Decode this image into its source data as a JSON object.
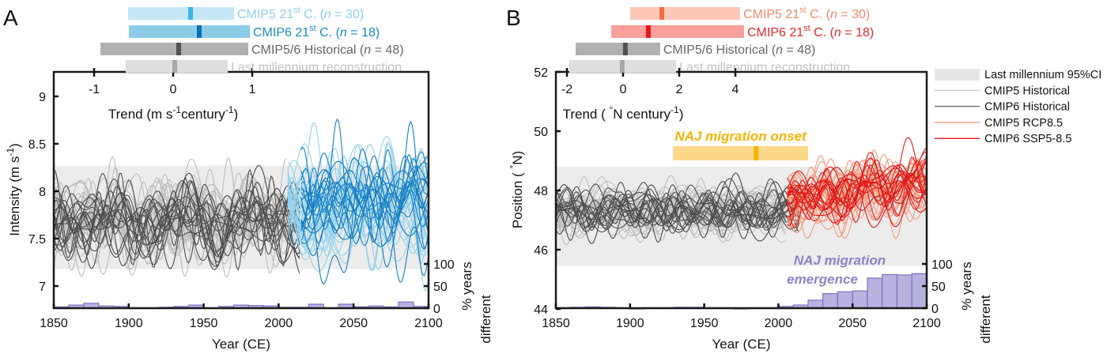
{
  "chart_data": [
    {
      "panel_label": "A",
      "type": "line",
      "xlabel": "Year (CE)",
      "ylabel": "Intensity (m s",
      "ylabel_sup": "-1",
      "ylabel_end": ")",
      "right_label_1": "% years",
      "right_label_2": "different",
      "xlim": [
        1850,
        2100
      ],
      "ylim": [
        6.77,
        9.26
      ],
      "xticks": [
        1850,
        1900,
        1950,
        2000,
        2050,
        2100
      ],
      "yticks": [
        7,
        7.5,
        8,
        8.5,
        9
      ],
      "right_ylim": [
        0,
        100
      ],
      "right_yticks": [
        0,
        50,
        100
      ],
      "band": {
        "name": "Last millennium 95%CI",
        "range": [
          7.18,
          8.27
        ],
        "color": "#ececec"
      },
      "series": [
        {
          "name": "CMIP5 Historical",
          "count": 30,
          "period": [
            1850,
            2005
          ],
          "mean": 7.72,
          "color": "#bdbdbd"
        },
        {
          "name": "CMIP6 Historical",
          "count": 18,
          "period": [
            1850,
            2014
          ],
          "mean": 7.68,
          "color": "#4d4d4d"
        },
        {
          "name": "CMIP5 RCP8.5",
          "count": 30,
          "period": [
            2006,
            2100
          ],
          "mean": 7.8,
          "color": "#93d2ee"
        },
        {
          "name": "CMIP6 SSP5-8.5",
          "count": 18,
          "period": [
            2015,
            2100
          ],
          "mean": 7.85,
          "color": "#157fc2"
        }
      ],
      "histogram": {
        "bin_width": 10,
        "bins_start": [
          1850,
          1860,
          1870,
          1880,
          1890,
          1900,
          1910,
          1920,
          1930,
          1940,
          1950,
          1960,
          1970,
          1980,
          1990,
          2000,
          2010,
          2020,
          2030,
          2040,
          2050,
          2060,
          2070,
          2080,
          2090
        ],
        "values": [
          3,
          7,
          11,
          5,
          4,
          1,
          1,
          2,
          4,
          7,
          1,
          4,
          7,
          6,
          5,
          2,
          2,
          9,
          1,
          9,
          3,
          5,
          3,
          14,
          4
        ],
        "fill": "#b7b2de",
        "stroke": "#7b74c2"
      },
      "trend_axis": {
        "label": "Trend (m s",
        "sup1": "-1",
        "mid": "century",
        "sup2": "-1",
        "end": ")",
        "ticks": [
          -1,
          0,
          1
        ],
        "rows": [
          {
            "text": "CMIP5 21",
            "sup": "st",
            "rest": " C. (",
            "n": "n",
            "count": " = 30)",
            "range": [
              -0.57,
              0.77
            ],
            "median": 0.22,
            "bar": "#c5e6f5",
            "median_color": "#3bb4e0",
            "text_color": "#8ccfe9"
          },
          {
            "text": "CMIP6 21",
            "sup": "st",
            "rest": " C. (",
            "n": "n",
            "count": " = 18)",
            "range": [
              -0.56,
              0.97
            ],
            "median": 0.33,
            "bar": "#8ccbe8",
            "median_color": "#0a6fb5",
            "text_color": "#1a8cc4"
          },
          {
            "text": "CMIP5/6 Historical (",
            "sup": "",
            "rest": "",
            "n": "n",
            "count": " = 48)",
            "range": [
              -0.92,
              0.95
            ],
            "median": 0.07,
            "bar": "#b0b0b0",
            "median_color": "#505050",
            "text_color": "#666666"
          },
          {
            "text": "Last millennium reconstruction",
            "sup": "",
            "rest": "",
            "n": "",
            "count": "",
            "range": [
              -0.6,
              0.69
            ],
            "median": 0.02,
            "bar": "#dedede",
            "median_color": "#a8a8a8",
            "text_color": "#c2c2c2"
          }
        ]
      }
    },
    {
      "panel_label": "B",
      "type": "line",
      "xlabel": "Year (CE)",
      "ylabel": "Position ( ",
      "ylabel_sup": "°",
      "ylabel_end": "N)",
      "right_label_1": "% years",
      "right_label_2": "different",
      "xlim": [
        1850,
        2100
      ],
      "ylim": [
        44,
        52
      ],
      "xticks": [
        1850,
        1900,
        1950,
        2000,
        2050,
        2100
      ],
      "yticks": [
        44,
        46,
        48,
        50,
        52
      ],
      "right_ylim": [
        0,
        100
      ],
      "right_yticks": [
        0,
        50,
        100
      ],
      "band": {
        "name": "Last millennium 95%CI",
        "range": [
          45.45,
          48.8
        ],
        "color": "#ececec"
      },
      "series": [
        {
          "name": "CMIP5 Historical",
          "count": 30,
          "period": [
            1850,
            2005
          ],
          "mean": 47.3,
          "color": "#bdbdbd"
        },
        {
          "name": "CMIP6 Historical",
          "count": 18,
          "period": [
            1850,
            2014
          ],
          "mean": 47.3,
          "color": "#4d4d4d"
        },
        {
          "name": "CMIP5 RCP8.5",
          "count": 30,
          "period": [
            2006,
            2100
          ],
          "mean": 47.6,
          "color": "#f79a7d"
        },
        {
          "name": "CMIP6 SSP5-8.5",
          "count": 18,
          "period": [
            2006,
            2100
          ],
          "mean": 47.7,
          "color": "#e01818"
        }
      ],
      "legend": [
        {
          "label": "Last millennium 95%CI",
          "kind": "patch",
          "color": "#e6e6e6"
        },
        {
          "label": "CMIP5 Historical",
          "kind": "line",
          "color": "#cfcfcf"
        },
        {
          "label": "CMIP6 Historical",
          "kind": "line",
          "color": "#707070"
        },
        {
          "label": "CMIP5 RCP8.5",
          "kind": "line",
          "color": "#f79a7d"
        },
        {
          "label": "CMIP6 SSP5-8.5",
          "kind": "line",
          "color": "#e01818"
        }
      ],
      "annotations": {
        "onset_label": "NAJ migration onset",
        "onset_range": [
          1929,
          2020
        ],
        "onset_median": 1985,
        "onset_color": "#f5b400",
        "onset_bar": "#fcd98a",
        "emergence_1": "NAJ migration",
        "emergence_2": "emergence",
        "emergence_color": "#8a84c8"
      },
      "histogram": {
        "bin_width": 10,
        "bins_start": [
          1850,
          1860,
          1870,
          1880,
          1890,
          1900,
          1910,
          1920,
          1930,
          1940,
          1950,
          1960,
          1970,
          1980,
          1990,
          2000,
          2010,
          2020,
          2030,
          2040,
          2050,
          2060,
          2070,
          2080,
          2090
        ],
        "values": [
          1,
          2,
          3,
          2,
          1,
          0,
          1,
          1,
          2,
          2,
          1,
          1,
          0,
          1,
          1,
          4,
          7,
          18,
          33,
          37,
          39,
          68,
          76,
          75,
          78
        ],
        "fill": "#b7b2de",
        "stroke": "#7b74c2"
      },
      "trend_axis": {
        "label": "Trend ( ",
        "sup1": "°",
        "mid": "N century",
        "sup2": "-1",
        "end": ")",
        "ticks": [
          -2,
          0,
          2,
          4
        ],
        "rows": [
          {
            "text": "CMIP5 21",
            "sup": "st",
            "rest": " C. (",
            "n": "n",
            "count": " = 30)",
            "range": [
              0.25,
              4.17
            ],
            "median": 1.38,
            "bar": "#fdc8b8",
            "median_color": "#f26a45",
            "text_color": "#f08a6c"
          },
          {
            "text": "CMIP6 21",
            "sup": "st",
            "rest": " C. (",
            "n": "n",
            "count": " = 18)",
            "range": [
              -0.42,
              4.31
            ],
            "median": 0.9,
            "bar": "#fa9f9a",
            "median_color": "#e81818",
            "text_color": "#e02a2a"
          },
          {
            "text": "CMIP5/6 Historical (",
            "sup": "",
            "rest": "",
            "n": "n",
            "count": " = 48)",
            "range": [
              -1.69,
              1.32
            ],
            "median": 0.08,
            "bar": "#b0b0b0",
            "median_color": "#505050",
            "text_color": "#666666"
          },
          {
            "text": "Last millennium reconstruction",
            "sup": "",
            "rest": "",
            "n": "",
            "count": "",
            "range": [
              -1.92,
              1.89
            ],
            "median": -0.03,
            "bar": "#dedede",
            "median_color": "#a8a8a8",
            "text_color": "#c2c2c2"
          }
        ]
      }
    }
  ]
}
